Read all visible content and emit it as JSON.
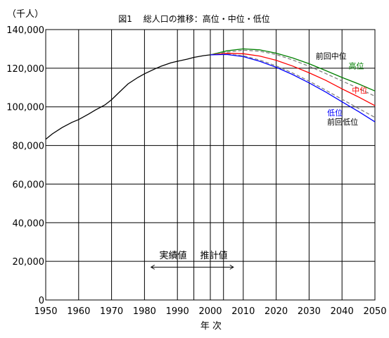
{
  "chart_data": {
    "type": "line",
    "title": "図1　 総人口の推移：高位・中位・低位",
    "unit_label": "（千人）",
    "xlabel": "年 次",
    "ylabel": "",
    "xlim": [
      1950,
      2050
    ],
    "ylim": [
      0,
      140000
    ],
    "x_ticks": [
      1950,
      1960,
      1970,
      1980,
      1990,
      2000,
      2010,
      2020,
      2030,
      2040,
      2050
    ],
    "y_ticks": [
      0,
      20000,
      40000,
      60000,
      80000,
      100000,
      120000,
      140000
    ],
    "y_tick_labels": [
      "0",
      "20,000",
      "40,000",
      "60,000",
      "80,000",
      "100,000",
      "120,000",
      "140,000"
    ],
    "extra_vertical_lines": [
      1995,
      2004
    ],
    "grid": true,
    "annotation": {
      "actual_label": "実績値",
      "projection_label": "推計値",
      "arrow_from": 1982,
      "arrow_to": 2007,
      "y": 17000
    },
    "series": [
      {
        "name": "実績値",
        "color": "#000000",
        "dashed": false,
        "x": [
          1950,
          1952,
          1955,
          1958,
          1960,
          1963,
          1965,
          1968,
          1970,
          1972,
          1975,
          1978,
          1980,
          1983,
          1985,
          1988,
          1990,
          1993,
          1995,
          1998,
          2000
        ],
        "y": [
          83200,
          86000,
          89300,
          92000,
          93400,
          96200,
          98300,
          101000,
          103700,
          107000,
          111900,
          115200,
          117100,
          119500,
          121000,
          122800,
          123600,
          124700,
          125600,
          126500,
          126900
        ]
      },
      {
        "name": "高位",
        "color": "#008000",
        "dashed": false,
        "x": [
          2000,
          2005,
          2010,
          2015,
          2020,
          2025,
          2030,
          2035,
          2040,
          2045,
          2050
        ],
        "y": [
          126900,
          129000,
          130000,
          129500,
          127800,
          125300,
          122300,
          118800,
          115200,
          111900,
          108200
        ]
      },
      {
        "name": "前回中位",
        "color": "#808080",
        "dashed": true,
        "x": [
          2000,
          2005,
          2010,
          2015,
          2020,
          2025,
          2030,
          2035,
          2040,
          2045,
          2050
        ],
        "y": [
          126900,
          128300,
          129300,
          128800,
          127100,
          124300,
          121000,
          117300,
          113400,
          109600,
          105500
        ]
      },
      {
        "name": "中位",
        "color": "#ff0000",
        "dashed": false,
        "x": [
          2000,
          2005,
          2010,
          2015,
          2020,
          2025,
          2030,
          2035,
          2040,
          2045,
          2050
        ],
        "y": [
          126900,
          127700,
          127500,
          126300,
          124100,
          121100,
          117600,
          113800,
          109300,
          105100,
          100600
        ]
      },
      {
        "name": "前回低位",
        "color": "#808080",
        "dashed": true,
        "x": [
          2000,
          2005,
          2010,
          2015,
          2020,
          2025,
          2030,
          2035,
          2040,
          2045,
          2050
        ],
        "y": [
          126900,
          127300,
          126400,
          124200,
          121200,
          117500,
          113300,
          108700,
          103900,
          99200,
          94500
        ]
      },
      {
        "name": "低位",
        "color": "#0000ff",
        "dashed": false,
        "x": [
          2000,
          2005,
          2010,
          2015,
          2020,
          2025,
          2030,
          2035,
          2040,
          2045,
          2050
        ],
        "y": [
          126900,
          127100,
          126000,
          123600,
          120500,
          116700,
          112400,
          107700,
          102600,
          97600,
          92200
        ]
      }
    ],
    "series_labels": [
      {
        "text": "前回中位",
        "color": "#000000",
        "x": 2032,
        "y": 124800
      },
      {
        "text": "高位",
        "color": "#008000",
        "x": 2042,
        "y": 119800
      },
      {
        "text": "中位",
        "color": "#ff0000",
        "x": 2043,
        "y": 107200
      },
      {
        "text": "低位",
        "color": "#0000ff",
        "x": 2035.5,
        "y": 95600
      },
      {
        "text": "前回低位",
        "color": "#000000",
        "x": 2035.5,
        "y": 90800
      }
    ]
  }
}
